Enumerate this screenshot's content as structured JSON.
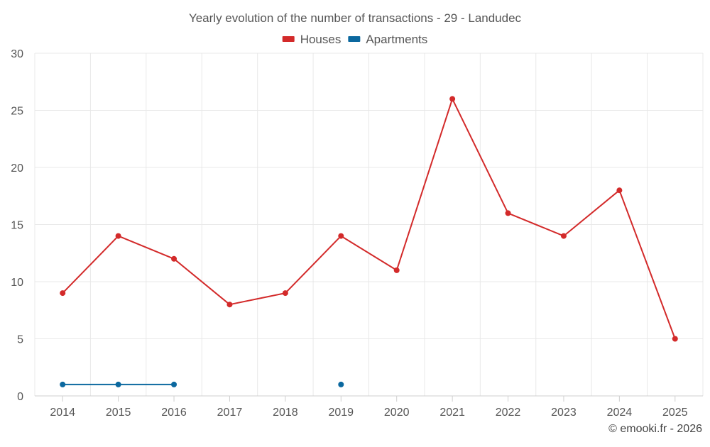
{
  "chart_data": {
    "type": "line",
    "title": "Yearly evolution of the number of transactions - 29 - Landudec",
    "categories": [
      "2014",
      "2015",
      "2016",
      "2017",
      "2018",
      "2019",
      "2020",
      "2021",
      "2022",
      "2023",
      "2024",
      "2025"
    ],
    "series": [
      {
        "name": "Houses",
        "color": "#d32a2a",
        "values": [
          9,
          14,
          12,
          8,
          9,
          14,
          11,
          26,
          16,
          14,
          18,
          5
        ]
      },
      {
        "name": "Apartments",
        "color": "#0b689f",
        "values": [
          1,
          1,
          1,
          null,
          null,
          1,
          null,
          null,
          null,
          null,
          null,
          null
        ]
      }
    ],
    "yticks": [
      0,
      5,
      10,
      15,
      20,
      25,
      30
    ],
    "ylim": [
      0,
      30
    ],
    "xlabel": "",
    "ylabel": "",
    "legend_position": "top-center",
    "grid": true
  },
  "footer": {
    "credit": "© emooki.fr - 2026"
  },
  "colors": {
    "grid": "#e8e8e8",
    "axis_text": "#555555",
    "title_text": "#555555"
  }
}
